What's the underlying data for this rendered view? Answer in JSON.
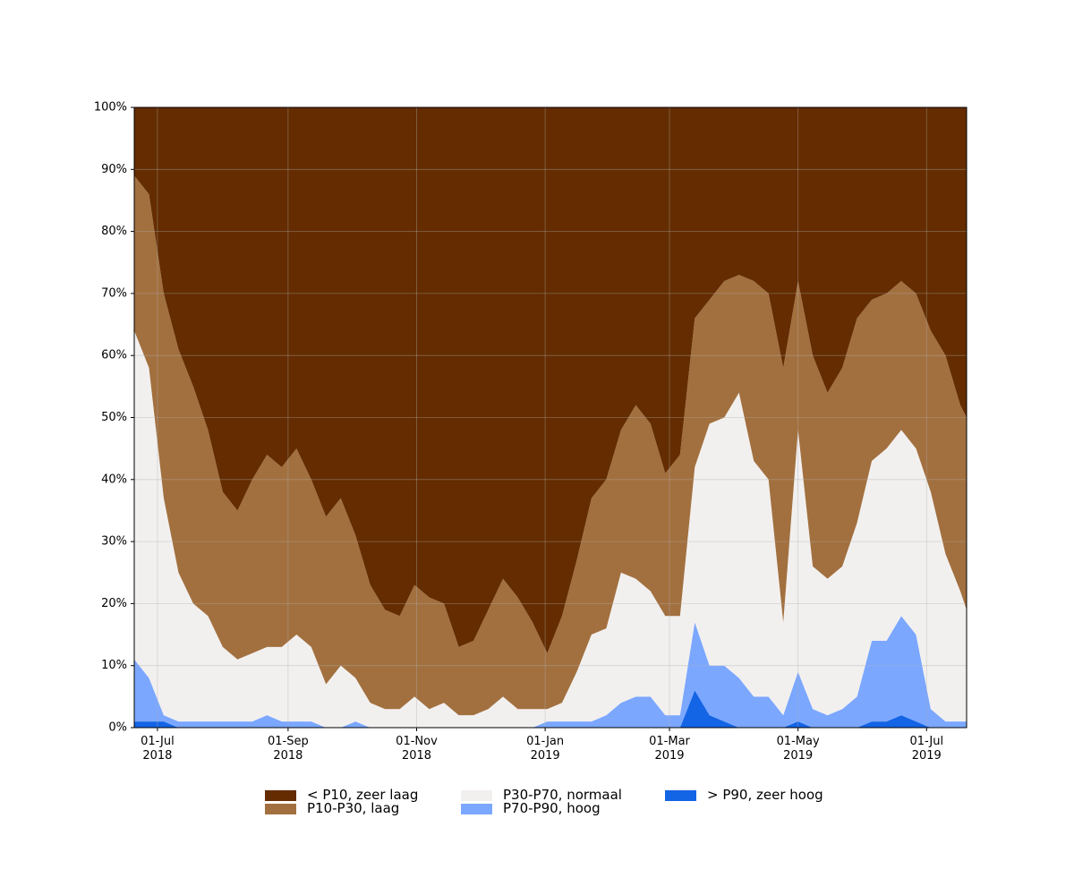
{
  "chart_data": {
    "type": "stacked_area",
    "x": [
      "2018-06-20",
      "2018-06-27",
      "2018-07-04",
      "2018-07-11",
      "2018-07-18",
      "2018-07-25",
      "2018-08-01",
      "2018-08-08",
      "2018-08-15",
      "2018-08-22",
      "2018-08-29",
      "2018-09-05",
      "2018-09-12",
      "2018-09-19",
      "2018-09-26",
      "2018-10-03",
      "2018-10-10",
      "2018-10-17",
      "2018-10-24",
      "2018-10-31",
      "2018-11-07",
      "2018-11-14",
      "2018-11-21",
      "2018-11-28",
      "2018-12-05",
      "2018-12-12",
      "2018-12-19",
      "2018-12-26",
      "2019-01-02",
      "2019-01-09",
      "2019-01-16",
      "2019-01-23",
      "2019-01-30",
      "2019-02-06",
      "2019-02-13",
      "2019-02-20",
      "2019-02-27",
      "2019-03-06",
      "2019-03-13",
      "2019-03-20",
      "2019-03-27",
      "2019-04-03",
      "2019-04-10",
      "2019-04-17",
      "2019-04-24",
      "2019-05-01",
      "2019-05-08",
      "2019-05-15",
      "2019-05-22",
      "2019-05-29",
      "2019-06-05",
      "2019-06-12",
      "2019-06-19",
      "2019-06-26",
      "2019-07-03",
      "2019-07-10",
      "2019-07-17",
      "2019-07-20"
    ],
    "series": [
      {
        "name": "< P10, zeer laag",
        "color": "#642c00",
        "values": [
          11,
          14,
          30,
          39,
          45,
          52,
          62,
          65,
          60,
          56,
          58,
          55,
          60,
          66,
          63,
          69,
          77,
          81,
          82,
          77,
          79,
          80,
          87,
          86,
          81,
          76,
          79,
          83,
          88,
          82,
          73,
          63,
          60,
          52,
          48,
          51,
          59,
          56,
          34,
          31,
          28,
          27,
          28,
          30,
          42,
          28,
          40,
          46,
          42,
          34,
          31,
          30,
          28,
          30,
          36,
          40,
          48,
          50
        ]
      },
      {
        "name": "P10-P30, laag",
        "color": "#a2703f",
        "values": [
          25,
          28,
          33,
          36,
          35,
          30,
          25,
          24,
          28,
          31,
          29,
          30,
          27,
          27,
          27,
          23,
          19,
          16,
          15,
          18,
          18,
          16,
          11,
          12,
          16,
          19,
          18,
          14,
          9,
          14,
          18,
          22,
          24,
          23,
          28,
          27,
          23,
          26,
          24,
          20,
          22,
          19,
          29,
          30,
          41,
          24,
          34,
          30,
          32,
          33,
          26,
          25,
          24,
          25,
          26,
          32,
          30,
          31
        ]
      },
      {
        "name": "P30-P70, normaal",
        "color": "#f2f0ef",
        "values": [
          53,
          50,
          35,
          24,
          19,
          17,
          12,
          10,
          11,
          11,
          12,
          14,
          12,
          7,
          10,
          7,
          4,
          3,
          3,
          5,
          3,
          4,
          2,
          2,
          3,
          5,
          3,
          3,
          2,
          3,
          8,
          14,
          14,
          21,
          19,
          17,
          16,
          16,
          25,
          39,
          40,
          46,
          38,
          35,
          15,
          39,
          23,
          22,
          23,
          28,
          29,
          31,
          30,
          30,
          35,
          27,
          21,
          18
        ]
      },
      {
        "name": "P70-P90, hoog",
        "color": "#7ba7ff",
        "values": [
          10,
          7,
          1,
          1,
          1,
          1,
          1,
          1,
          1,
          2,
          1,
          1,
          1,
          0,
          0,
          1,
          0,
          0,
          0,
          0,
          0,
          0,
          0,
          0,
          0,
          0,
          0,
          0,
          1,
          1,
          1,
          1,
          2,
          4,
          5,
          5,
          2,
          2,
          11,
          8,
          9,
          8,
          5,
          5,
          2,
          8,
          3,
          2,
          3,
          5,
          13,
          13,
          16,
          14,
          3,
          1,
          1,
          1
        ]
      },
      {
        "name": "> P90, zeer hoog",
        "color": "#1464e6",
        "values": [
          1,
          1,
          1,
          0,
          0,
          0,
          0,
          0,
          0,
          0,
          0,
          0,
          0,
          0,
          0,
          0,
          0,
          0,
          0,
          0,
          0,
          0,
          0,
          0,
          0,
          0,
          0,
          0,
          0,
          0,
          0,
          0,
          0,
          0,
          0,
          0,
          0,
          0,
          6,
          2,
          1,
          0,
          0,
          0,
          0,
          1,
          0,
          0,
          0,
          0,
          1,
          1,
          2,
          1,
          0,
          0,
          0,
          0
        ]
      }
    ],
    "xlim": [
      "2018-06-20",
      "2019-07-20"
    ],
    "xticks": [
      {
        "value": "2018-07-01",
        "label": "01-Jul\n2018"
      },
      {
        "value": "2018-09-01",
        "label": "01-Sep\n2018"
      },
      {
        "value": "2018-11-01",
        "label": "01-Nov\n2018"
      },
      {
        "value": "2019-01-01",
        "label": "01-Jan\n2019"
      },
      {
        "value": "2019-03-01",
        "label": "01-Mar\n2019"
      },
      {
        "value": "2019-05-01",
        "label": "01-May\n2019"
      },
      {
        "value": "2019-07-01",
        "label": "01-Jul\n2019"
      }
    ],
    "ylim": [
      0,
      100
    ],
    "yticks": [
      {
        "value": 0,
        "label": "0%"
      },
      {
        "value": 10,
        "label": "10%"
      },
      {
        "value": 20,
        "label": "20%"
      },
      {
        "value": 30,
        "label": "30%"
      },
      {
        "value": 40,
        "label": "40%"
      },
      {
        "value": 50,
        "label": "50%"
      },
      {
        "value": 60,
        "label": "60%"
      },
      {
        "value": 70,
        "label": "70%"
      },
      {
        "value": 80,
        "label": "80%"
      },
      {
        "value": 90,
        "label": "90%"
      },
      {
        "value": 100,
        "label": "100%"
      }
    ],
    "grid": true,
    "legend": "lower center"
  }
}
